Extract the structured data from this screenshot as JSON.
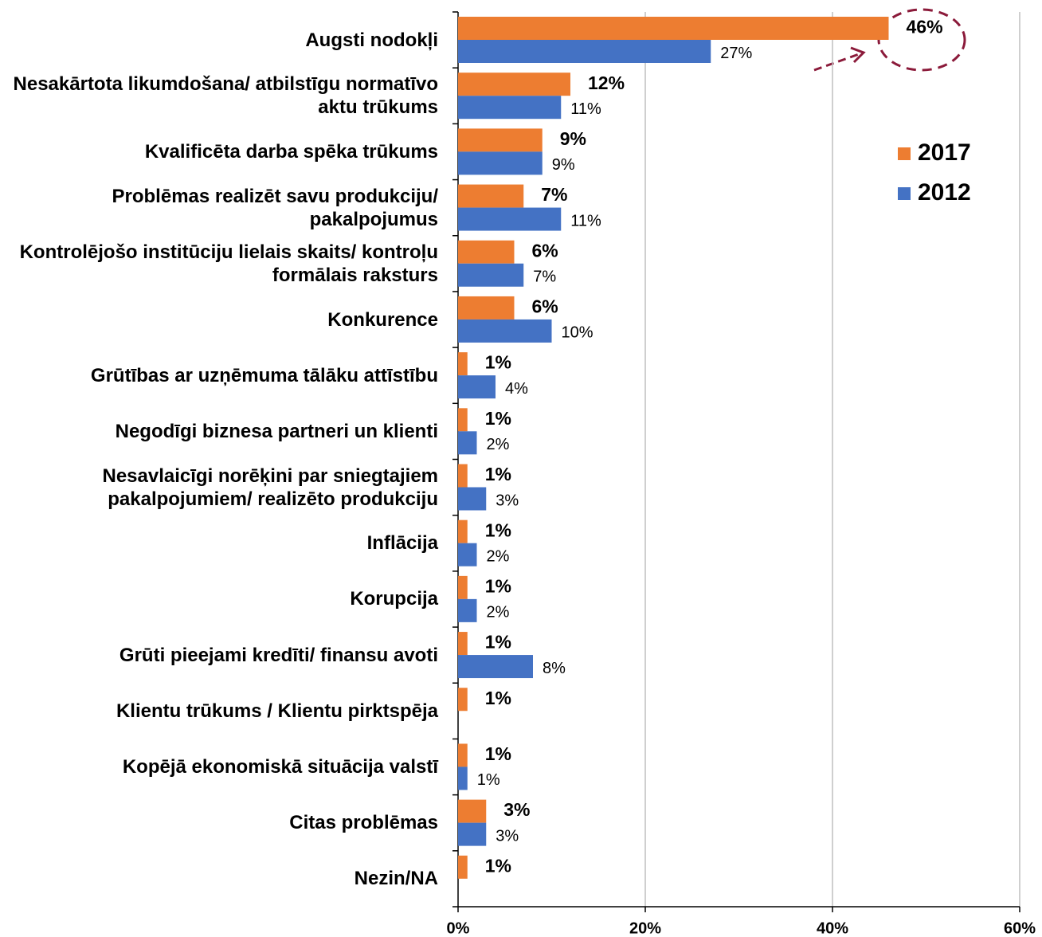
{
  "chart_data": {
    "type": "hbar",
    "categories": [
      "Augsti nodokļi",
      "Nesakārtota likumdošana/ atbilstīgu normatīvo aktu trūkums",
      "Kvalificēta darba spēka trūkums",
      "Problēmas realizēt savu produkciju/ pakalpojumus",
      "Kontrolējošo institūciju lielais skaits/ kontroļu formālais raksturs",
      "Konkurence",
      "Grūtības ar uzņēmuma tālāku attīstību",
      "Negodīgi biznesa partneri un klienti",
      "Nesavlaicīgi norēķini par sniegtajiem pakalpojumiem/ realizēto produkciju",
      "Inflācija",
      "Korupcija",
      "Grūti pieejami kredīti/ finansu avoti",
      "Klientu trūkums / Klientu pirktspēja",
      "Kopējā ekonomiskā  situācija valstī",
      "Citas problēmas",
      "Nezin/NA"
    ],
    "series": [
      {
        "name": "2017",
        "color": "#ed7d31",
        "values": [
          46,
          12,
          9,
          7,
          6,
          6,
          1,
          1,
          1,
          1,
          1,
          1,
          1,
          1,
          3,
          1
        ],
        "value_labels": [
          "46%",
          "12%",
          "9%",
          "7%",
          "6%",
          "6%",
          "1%",
          "1%",
          "1%",
          "1%",
          "1%",
          "1%",
          "1%",
          "1%",
          "3%",
          "1%"
        ]
      },
      {
        "name": "2012",
        "color": "#4472c4",
        "values": [
          27,
          11,
          9,
          11,
          7,
          10,
          4,
          2,
          3,
          2,
          2,
          8,
          null,
          1,
          3,
          null
        ],
        "value_labels": [
          "27%",
          "11%",
          "9%",
          "11%",
          "7%",
          "10%",
          "4%",
          "2%",
          "3%",
          "2%",
          "2%",
          "8%",
          null,
          "1%",
          "3%",
          null
        ]
      }
    ],
    "xlim": [
      0,
      60
    ],
    "xticks": [
      {
        "value": 0,
        "label": "0%"
      },
      {
        "value": 20,
        "label": "20%"
      },
      {
        "value": 40,
        "label": "40%"
      },
      {
        "value": 60,
        "label": "60%"
      }
    ],
    "grid": true
  }
}
